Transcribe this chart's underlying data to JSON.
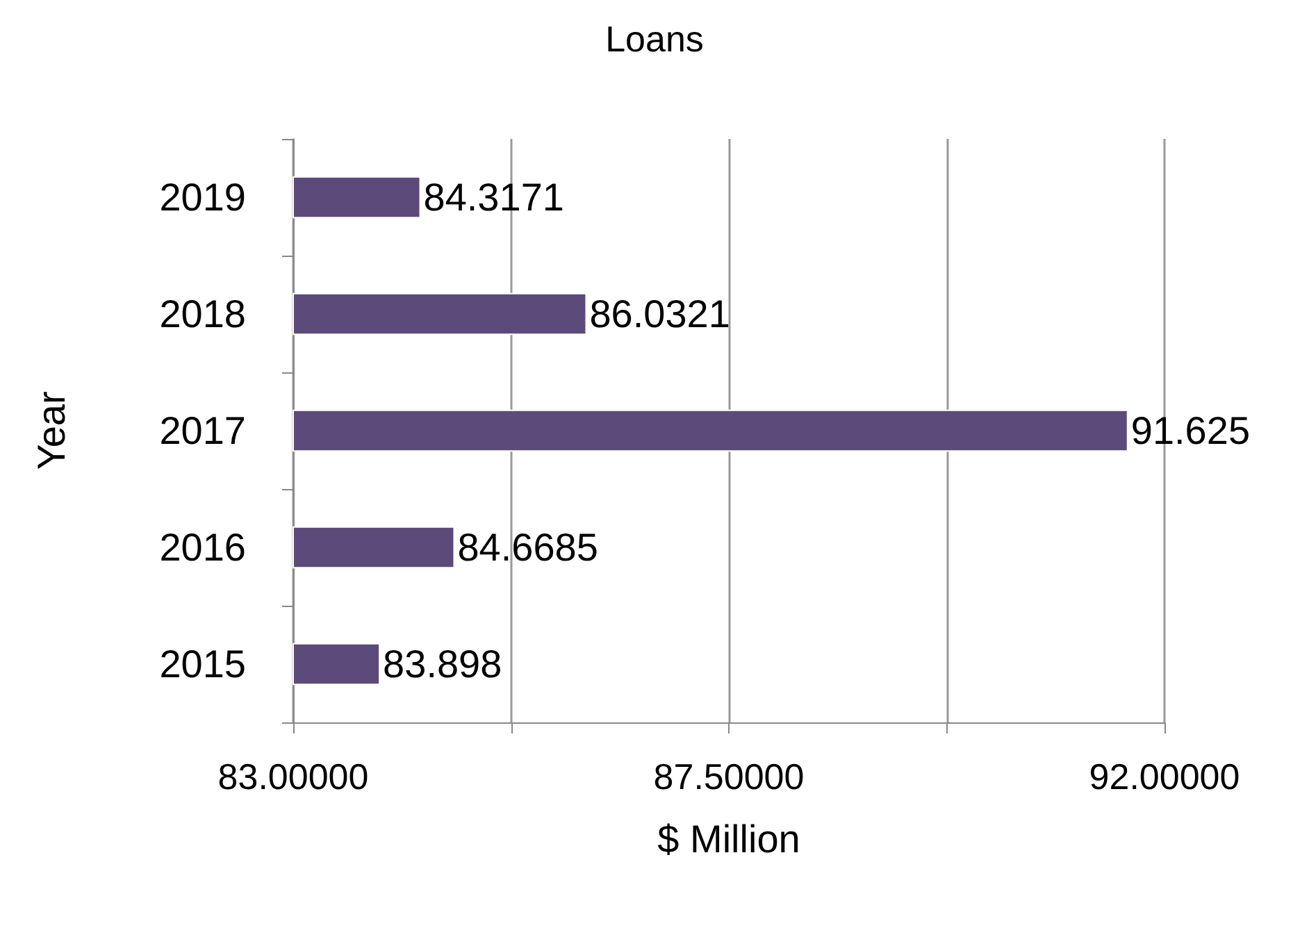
{
  "chart_data": {
    "type": "bar",
    "orientation": "horizontal",
    "title": "Loans",
    "xlabel": "$ Million",
    "ylabel": "Year",
    "categories": [
      "2019",
      "2018",
      "2017",
      "2016",
      "2015"
    ],
    "values": [
      84.3171,
      86.0321,
      91.625,
      84.6685,
      83.898
    ],
    "color": "#5b4a7a",
    "xlim": [
      83,
      92
    ],
    "xticks": [
      {
        "value": 83,
        "label": "83.00000"
      },
      {
        "value": 85.25,
        "label": null
      },
      {
        "value": 87.5,
        "label": "87.50000"
      },
      {
        "value": 89.75,
        "label": null
      },
      {
        "value": 92,
        "label": "92.00000"
      }
    ],
    "grid": "x",
    "data_labels": true
  }
}
